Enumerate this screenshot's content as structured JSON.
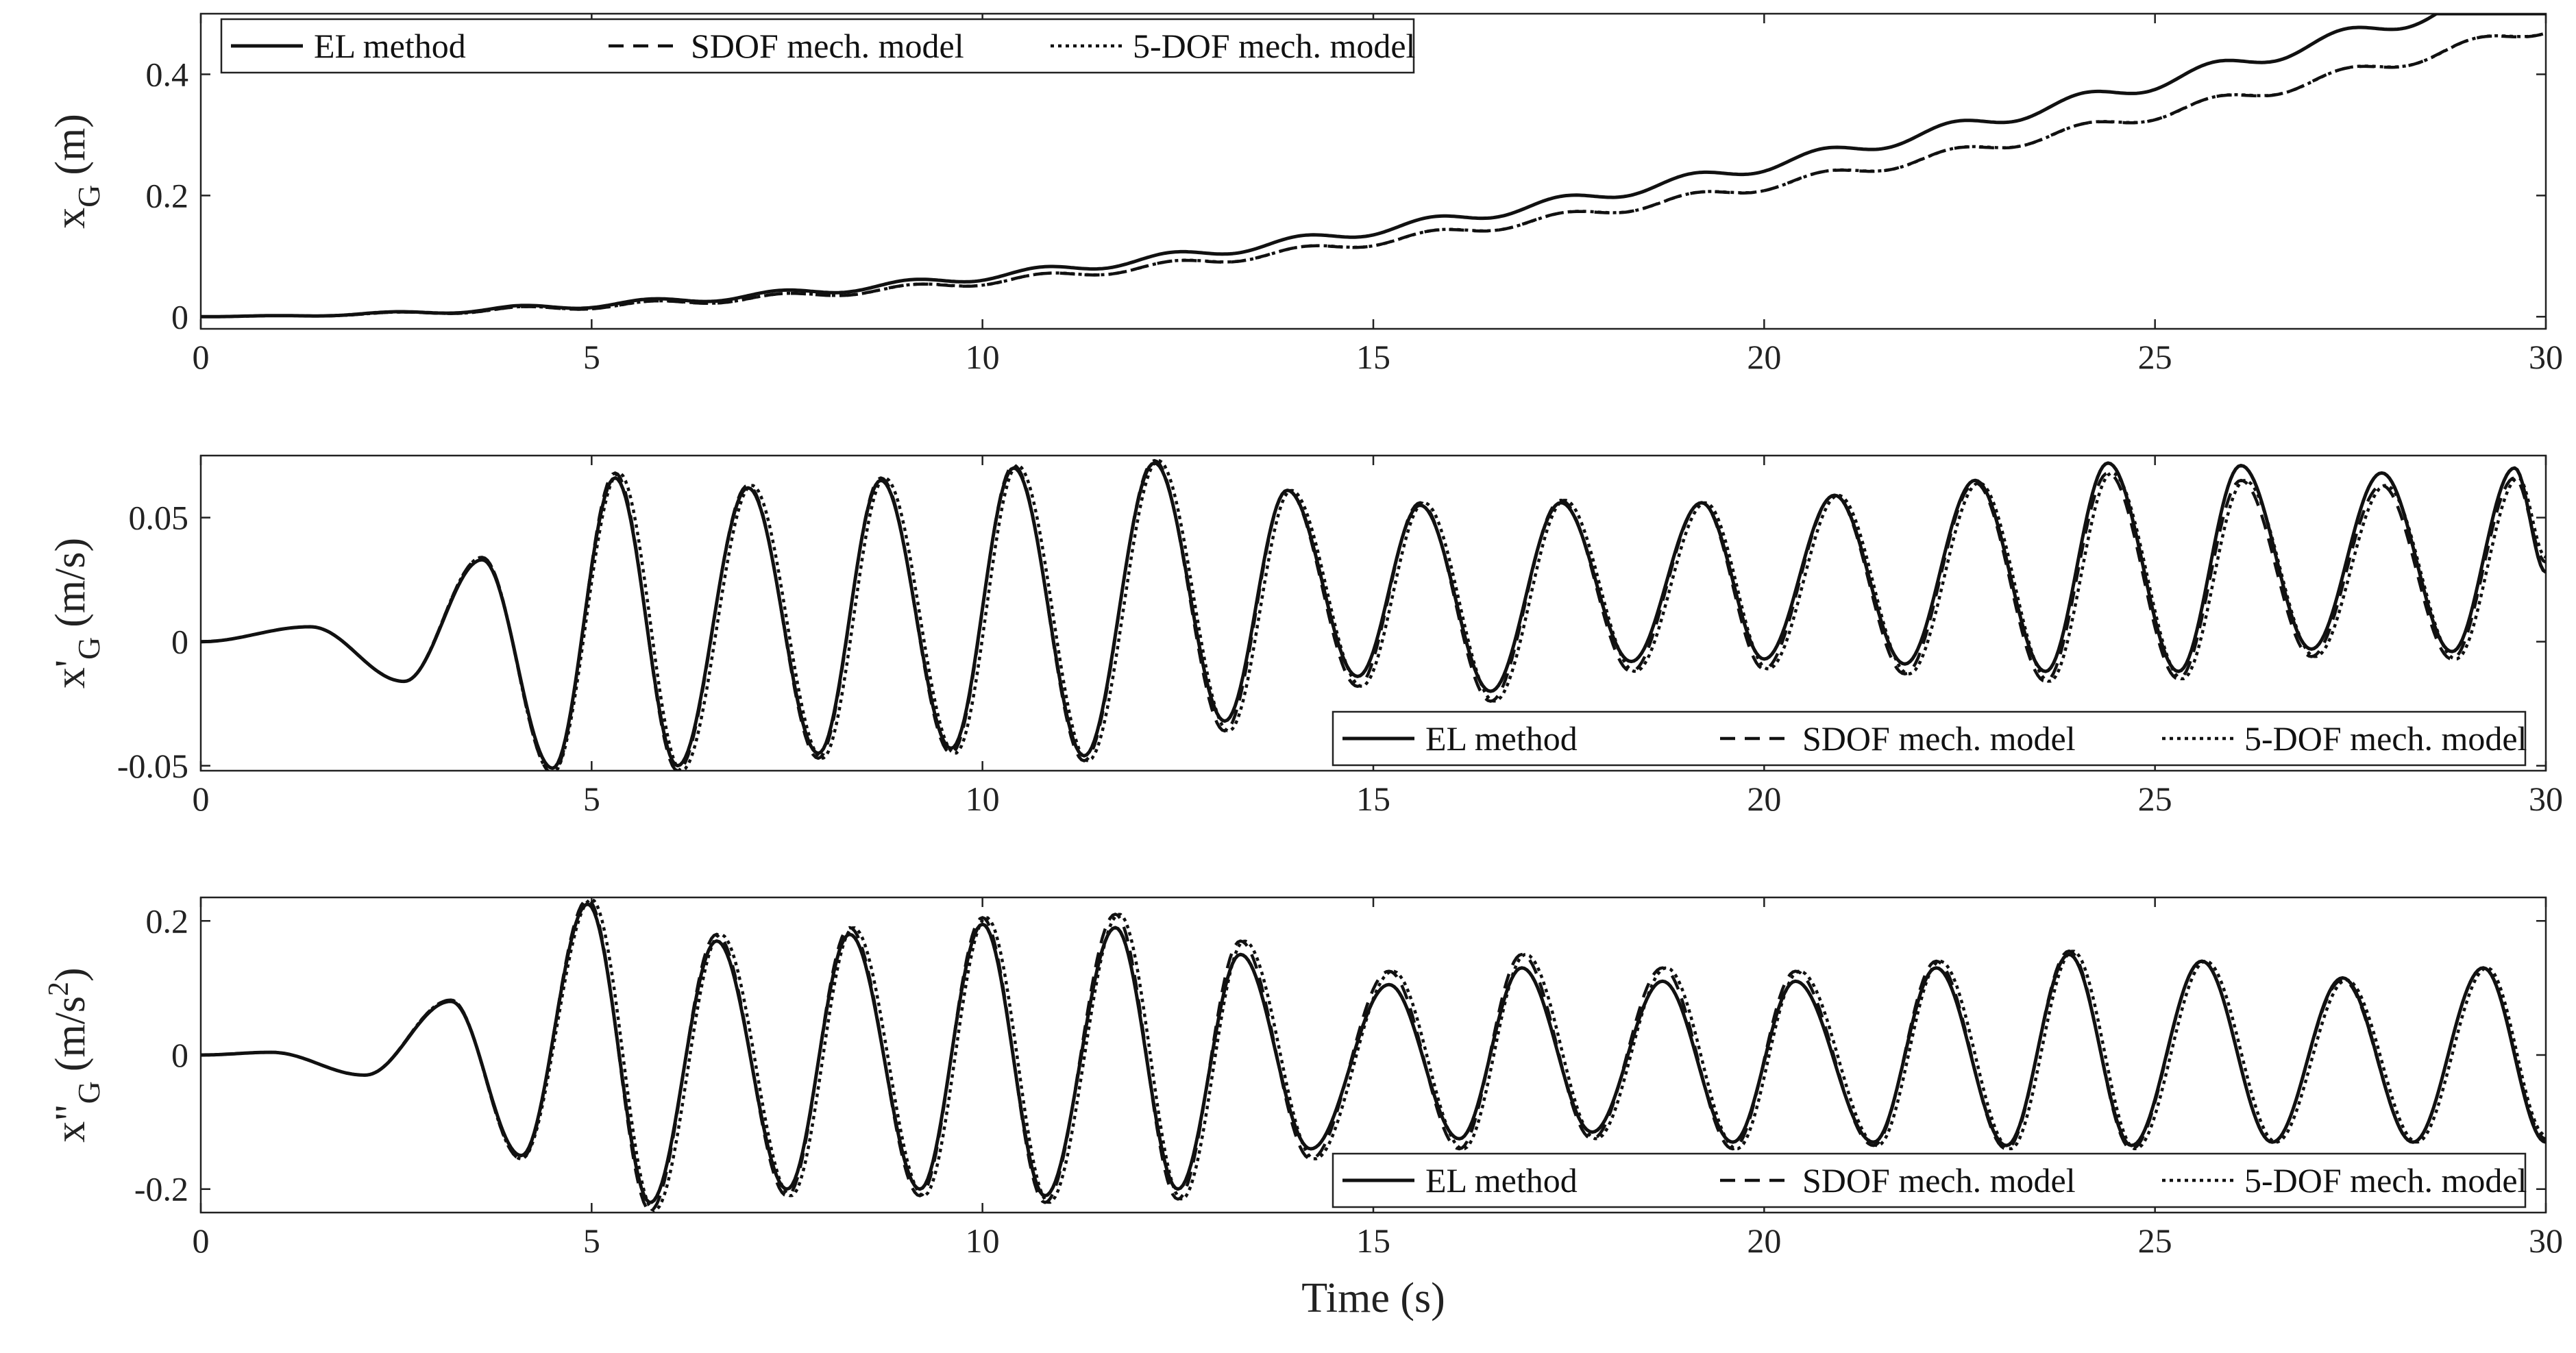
{
  "chart_data": [
    {
      "type": "line",
      "xlim": [
        0,
        30
      ],
      "ylim": [
        -0.02,
        0.5
      ],
      "xticks": [
        "0",
        "5",
        "10",
        "15",
        "20",
        "25",
        "30"
      ],
      "yticks": [
        "0",
        "0.2",
        "0.4"
      ],
      "xlabel": "",
      "ylabel_main": "x",
      "ylabel_sub": "G",
      "ylabel_sup": "",
      "ylabel_unit": "(m)",
      "ylabel_unit_sup": "",
      "ylabel_unit_end": "",
      "legend": [
        "EL method",
        "SDOF mech. model",
        "5-DOF mech. model"
      ],
      "legend_position": "top-left",
      "series": [
        {
          "name": "EL method",
          "style": "solid",
          "model": {
            "trend": 0.0006,
            "trend_pow": 2.0,
            "amp0": 0.003,
            "amp_end": 0.013,
            "freq_a": 0.6,
            "freq_b": 0.0,
            "phase": -1.2,
            "env_ramp": 4.0,
            "cap": 0.5
          }
        },
        {
          "name": "SDOF mech. model",
          "style": "dashed",
          "model": {
            "trend": 0.00052,
            "trend_pow": 2.0,
            "amp0": 0.003,
            "amp_end": 0.01,
            "freq_a": 0.6,
            "freq_b": 0.0,
            "phase": -1.3,
            "env_ramp": 4.0,
            "cap": 0.5
          }
        },
        {
          "name": "5-DOF mech. model",
          "style": "dotted",
          "model": {
            "trend": 0.00052,
            "trend_pow": 2.0,
            "amp0": 0.003,
            "amp_end": 0.01,
            "freq_a": 0.6,
            "freq_b": 0.0,
            "phase": -1.35,
            "env_ramp": 4.0,
            "cap": 0.5
          }
        }
      ]
    },
    {
      "type": "line",
      "xlim": [
        0,
        30
      ],
      "ylim": [
        -0.052,
        0.075
      ],
      "xticks": [
        "0",
        "5",
        "10",
        "15",
        "20",
        "25",
        "30"
      ],
      "yticks": [
        "-0.05",
        "0",
        "0.05"
      ],
      "xlabel": "",
      "ylabel_main": "x'",
      "ylabel_sub": "G",
      "ylabel_sup": "",
      "ylabel_unit": "(m/s)",
      "ylabel_unit_sup": "",
      "ylabel_unit_end": "",
      "legend": [
        "EL method",
        "SDOF mech. model",
        "5-DOF mech. model"
      ],
      "legend_position": "bottom-right",
      "series": [
        {
          "name": "EL method",
          "style": "solid",
          "key_points": [
            [
              0,
              0
            ],
            [
              1.4,
              0.006
            ],
            [
              2.6,
              -0.016
            ],
            [
              3.6,
              0.033
            ],
            [
              4.5,
              -0.051
            ],
            [
              5.3,
              0.066
            ],
            [
              6.1,
              -0.05
            ],
            [
              7.0,
              0.062
            ],
            [
              7.9,
              -0.045
            ],
            [
              8.7,
              0.065
            ],
            [
              9.6,
              -0.043
            ],
            [
              10.4,
              0.07
            ],
            [
              11.3,
              -0.046
            ],
            [
              12.2,
              0.072
            ],
            [
              13.1,
              -0.032
            ],
            [
              13.9,
              0.061
            ],
            [
              14.8,
              -0.014
            ],
            [
              15.6,
              0.055
            ],
            [
              16.5,
              -0.02
            ],
            [
              17.4,
              0.056
            ],
            [
              18.3,
              -0.008
            ],
            [
              19.2,
              0.056
            ],
            [
              20.0,
              -0.007
            ],
            [
              20.9,
              0.059
            ],
            [
              21.8,
              -0.009
            ],
            [
              22.7,
              0.065
            ],
            [
              23.6,
              -0.012
            ],
            [
              24.4,
              0.072
            ],
            [
              25.3,
              -0.012
            ],
            [
              26.1,
              0.071
            ],
            [
              27.0,
              -0.003
            ],
            [
              27.9,
              0.068
            ],
            [
              28.8,
              -0.004
            ],
            [
              29.6,
              0.07
            ],
            [
              30,
              0.028
            ]
          ]
        },
        {
          "name": "SDOF mech. model",
          "style": "dashed",
          "key_points": [
            [
              0,
              0
            ],
            [
              1.4,
              0.006
            ],
            [
              2.6,
              -0.016
            ],
            [
              3.6,
              0.034
            ],
            [
              4.5,
              -0.053
            ],
            [
              5.3,
              0.068
            ],
            [
              6.1,
              -0.052
            ],
            [
              7.0,
              0.063
            ],
            [
              7.9,
              -0.047
            ],
            [
              8.7,
              0.066
            ],
            [
              9.6,
              -0.045
            ],
            [
              10.4,
              0.071
            ],
            [
              11.3,
              -0.048
            ],
            [
              12.2,
              0.073
            ],
            [
              13.1,
              -0.036
            ],
            [
              13.9,
              0.061
            ],
            [
              14.8,
              -0.018
            ],
            [
              15.6,
              0.056
            ],
            [
              16.5,
              -0.024
            ],
            [
              17.4,
              0.057
            ],
            [
              18.3,
              -0.012
            ],
            [
              19.2,
              0.056
            ],
            [
              20.0,
              -0.011
            ],
            [
              20.9,
              0.059
            ],
            [
              21.8,
              -0.013
            ],
            [
              22.7,
              0.064
            ],
            [
              23.6,
              -0.016
            ],
            [
              24.4,
              0.068
            ],
            [
              25.3,
              -0.015
            ],
            [
              26.1,
              0.065
            ],
            [
              27.0,
              -0.006
            ],
            [
              27.9,
              0.063
            ],
            [
              28.8,
              -0.007
            ],
            [
              29.6,
              0.066
            ],
            [
              30,
              0.032
            ]
          ]
        },
        {
          "name": "5-DOF mech. model",
          "style": "dotted",
          "key_points": [
            [
              0,
              0
            ],
            [
              1.4,
              0.006
            ],
            [
              2.6,
              -0.016
            ],
            [
              3.6,
              0.034
            ],
            [
              4.5,
              -0.053
            ],
            [
              5.35,
              0.068
            ],
            [
              6.15,
              -0.052
            ],
            [
              7.05,
              0.063
            ],
            [
              7.95,
              -0.047
            ],
            [
              8.75,
              0.066
            ],
            [
              9.65,
              -0.045
            ],
            [
              10.45,
              0.071
            ],
            [
              11.35,
              -0.048
            ],
            [
              12.25,
              0.073
            ],
            [
              13.15,
              -0.036
            ],
            [
              13.95,
              0.061
            ],
            [
              14.85,
              -0.018
            ],
            [
              15.65,
              0.056
            ],
            [
              16.55,
              -0.024
            ],
            [
              17.45,
              0.057
            ],
            [
              18.35,
              -0.012
            ],
            [
              19.25,
              0.056
            ],
            [
              20.05,
              -0.011
            ],
            [
              20.95,
              0.059
            ],
            [
              21.85,
              -0.013
            ],
            [
              22.75,
              0.064
            ],
            [
              23.65,
              -0.016
            ],
            [
              24.45,
              0.068
            ],
            [
              25.35,
              -0.015
            ],
            [
              26.15,
              0.065
            ],
            [
              27.05,
              -0.006
            ],
            [
              27.95,
              0.063
            ],
            [
              28.85,
              -0.007
            ],
            [
              29.65,
              0.066
            ],
            [
              30,
              0.034
            ]
          ]
        }
      ]
    },
    {
      "type": "line",
      "xlim": [
        0,
        30
      ],
      "ylim": [
        -0.235,
        0.235
      ],
      "xticks": [
        "0",
        "5",
        "10",
        "15",
        "20",
        "25",
        "30"
      ],
      "yticks": [
        "-0.2",
        "0",
        "0.2"
      ],
      "xlabel": "Time (s)",
      "ylabel_main": "x\"",
      "ylabel_sub": "G",
      "ylabel_sup": "",
      "ylabel_unit": "(m/s",
      "ylabel_unit_sup": "2",
      "ylabel_unit_end": ")",
      "legend": [
        "EL method",
        "SDOF mech. model",
        "5-DOF mech. model"
      ],
      "legend_position": "bottom-right",
      "series": [
        {
          "name": "EL method",
          "style": "solid",
          "key_points": [
            [
              0,
              0
            ],
            [
              0.9,
              0.004
            ],
            [
              2.1,
              -0.03
            ],
            [
              3.2,
              0.08
            ],
            [
              4.1,
              -0.15
            ],
            [
              4.95,
              0.225
            ],
            [
              5.75,
              -0.22
            ],
            [
              6.6,
              0.17
            ],
            [
              7.5,
              -0.2
            ],
            [
              8.3,
              0.18
            ],
            [
              9.2,
              -0.2
            ],
            [
              10.0,
              0.195
            ],
            [
              10.8,
              -0.21
            ],
            [
              11.7,
              0.19
            ],
            [
              12.5,
              -0.2
            ],
            [
              13.3,
              0.15
            ],
            [
              14.2,
              -0.14
            ],
            [
              15.2,
              0.105
            ],
            [
              16.1,
              -0.125
            ],
            [
              16.9,
              0.13
            ],
            [
              17.8,
              -0.115
            ],
            [
              18.7,
              0.11
            ],
            [
              19.6,
              -0.13
            ],
            [
              20.4,
              0.11
            ],
            [
              21.4,
              -0.13
            ],
            [
              22.2,
              0.13
            ],
            [
              23.1,
              -0.135
            ],
            [
              23.9,
              0.15
            ],
            [
              24.7,
              -0.135
            ],
            [
              25.6,
              0.14
            ],
            [
              26.5,
              -0.13
            ],
            [
              27.4,
              0.115
            ],
            [
              28.3,
              -0.13
            ],
            [
              29.2,
              0.13
            ],
            [
              30,
              -0.13
            ]
          ]
        },
        {
          "name": "SDOF mech. model",
          "style": "dashed",
          "key_points": [
            [
              0,
              0
            ],
            [
              0.9,
              0.004
            ],
            [
              2.1,
              -0.03
            ],
            [
              3.2,
              0.082
            ],
            [
              4.1,
              -0.155
            ],
            [
              4.95,
              0.232
            ],
            [
              5.75,
              -0.232
            ],
            [
              6.6,
              0.18
            ],
            [
              7.5,
              -0.21
            ],
            [
              8.3,
              0.19
            ],
            [
              9.2,
              -0.21
            ],
            [
              10.0,
              0.205
            ],
            [
              10.8,
              -0.22
            ],
            [
              11.7,
              0.21
            ],
            [
              12.5,
              -0.215
            ],
            [
              13.3,
              0.17
            ],
            [
              14.2,
              -0.155
            ],
            [
              15.2,
              0.125
            ],
            [
              16.1,
              -0.14
            ],
            [
              16.9,
              0.15
            ],
            [
              17.8,
              -0.125
            ],
            [
              18.7,
              0.13
            ],
            [
              19.6,
              -0.14
            ],
            [
              20.4,
              0.125
            ],
            [
              21.4,
              -0.135
            ],
            [
              22.2,
              0.14
            ],
            [
              23.1,
              -0.14
            ],
            [
              23.9,
              0.155
            ],
            [
              24.7,
              -0.14
            ],
            [
              25.6,
              0.14
            ],
            [
              26.5,
              -0.13
            ],
            [
              27.4,
              0.112
            ],
            [
              28.3,
              -0.13
            ],
            [
              29.2,
              0.13
            ],
            [
              30,
              -0.125
            ]
          ]
        },
        {
          "name": "5-DOF mech. model",
          "style": "dotted",
          "key_points": [
            [
              0,
              0
            ],
            [
              0.9,
              0.004
            ],
            [
              2.1,
              -0.03
            ],
            [
              3.2,
              0.082
            ],
            [
              4.1,
              -0.155
            ],
            [
              5.0,
              0.232
            ],
            [
              5.8,
              -0.232
            ],
            [
              6.65,
              0.18
            ],
            [
              7.55,
              -0.21
            ],
            [
              8.35,
              0.19
            ],
            [
              9.25,
              -0.21
            ],
            [
              10.05,
              0.205
            ],
            [
              10.85,
              -0.22
            ],
            [
              11.75,
              0.21
            ],
            [
              12.55,
              -0.215
            ],
            [
              13.35,
              0.17
            ],
            [
              14.25,
              -0.155
            ],
            [
              15.25,
              0.125
            ],
            [
              16.15,
              -0.14
            ],
            [
              16.95,
              0.15
            ],
            [
              17.85,
              -0.125
            ],
            [
              18.75,
              0.13
            ],
            [
              19.65,
              -0.14
            ],
            [
              20.45,
              0.125
            ],
            [
              21.45,
              -0.135
            ],
            [
              22.25,
              0.14
            ],
            [
              23.15,
              -0.14
            ],
            [
              23.95,
              0.155
            ],
            [
              24.75,
              -0.14
            ],
            [
              25.65,
              0.14
            ],
            [
              26.55,
              -0.13
            ],
            [
              27.45,
              0.112
            ],
            [
              28.35,
              -0.13
            ],
            [
              29.25,
              0.13
            ],
            [
              30,
              -0.12
            ]
          ]
        }
      ]
    }
  ]
}
